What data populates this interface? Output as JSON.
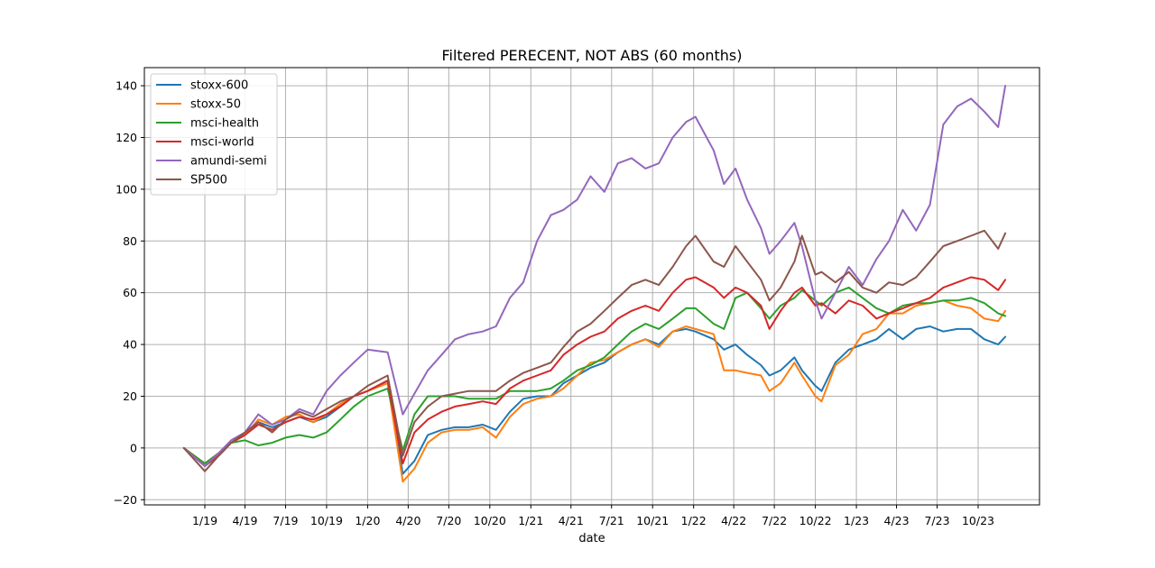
{
  "chart_data": {
    "type": "line",
    "title": "Filtered PERECENT, NOT ABS (60 months)",
    "xlabel": "date",
    "ylabel": "",
    "grid": true,
    "legend_position": "top-left",
    "x_tick_labels": [
      "1/19",
      "4/19",
      "7/19",
      "10/19",
      "1/20",
      "4/20",
      "7/20",
      "10/20",
      "1/21",
      "4/21",
      "7/21",
      "10/21",
      "1/22",
      "4/22",
      "7/22",
      "10/22",
      "1/23",
      "4/23",
      "7/23",
      "10/23"
    ],
    "y_ticks": [
      -20,
      0,
      20,
      40,
      60,
      80,
      100,
      120,
      140
    ],
    "ylim": [
      -22,
      147
    ],
    "x_dates": [
      "2018-11-15",
      "2019-01-01",
      "2019-02-01",
      "2019-03-01",
      "2019-04-01",
      "2019-05-01",
      "2019-06-01",
      "2019-07-01",
      "2019-08-01",
      "2019-09-01",
      "2019-10-01",
      "2019-11-01",
      "2019-12-01",
      "2020-01-01",
      "2020-02-15",
      "2020-03-20",
      "2020-04-15",
      "2020-05-15",
      "2020-06-15",
      "2020-07-15",
      "2020-08-15",
      "2020-09-15",
      "2020-10-15",
      "2020-11-15",
      "2020-12-15",
      "2021-01-15",
      "2021-02-15",
      "2021-03-15",
      "2021-04-15",
      "2021-05-15",
      "2021-06-15",
      "2021-07-15",
      "2021-08-15",
      "2021-09-15",
      "2021-10-15",
      "2021-11-15",
      "2021-12-15",
      "2022-01-05",
      "2022-02-15",
      "2022-03-10",
      "2022-04-05",
      "2022-05-01",
      "2022-06-01",
      "2022-06-20",
      "2022-07-15",
      "2022-08-15",
      "2022-09-01",
      "2022-10-01",
      "2022-10-15",
      "2022-11-15",
      "2022-12-15",
      "2023-01-15",
      "2023-02-15",
      "2023-03-15",
      "2023-04-15",
      "2023-05-15",
      "2023-06-15",
      "2023-07-15",
      "2023-08-15",
      "2023-09-15",
      "2023-10-15",
      "2023-11-15",
      "2023-12-01"
    ],
    "series": [
      {
        "name": "stoxx-600",
        "color": "#1f77b4",
        "values": [
          0,
          -7,
          -3,
          2,
          5,
          10,
          8,
          10,
          12,
          10,
          12,
          16,
          20,
          22,
          26,
          -10,
          -5,
          5,
          7,
          8,
          8,
          9,
          7,
          14,
          19,
          20,
          20,
          25,
          28,
          31,
          33,
          37,
          40,
          42,
          40,
          45,
          46,
          45,
          42,
          38,
          40,
          36,
          32,
          28,
          30,
          35,
          30,
          24,
          22,
          33,
          38,
          40,
          42,
          46,
          42,
          46,
          47,
          45,
          46,
          46,
          42,
          40,
          43
        ]
      },
      {
        "name": "stoxx-50",
        "color": "#ff7f0e",
        "values": [
          0,
          -6,
          -2,
          2,
          5,
          11,
          9,
          12,
          13,
          10,
          13,
          17,
          20,
          22,
          25,
          -13,
          -8,
          2,
          6,
          7,
          7,
          8,
          4,
          12,
          17,
          19,
          20,
          23,
          28,
          33,
          34,
          37,
          40,
          42,
          39,
          45,
          47,
          46,
          44,
          30,
          30,
          29,
          28,
          22,
          25,
          33,
          28,
          20,
          18,
          32,
          36,
          44,
          46,
          52,
          52,
          55,
          56,
          57,
          55,
          54,
          50,
          49,
          53
        ]
      },
      {
        "name": "msci-health",
        "color": "#2ca02c",
        "values": [
          0,
          -6,
          -2,
          2,
          3,
          1,
          2,
          4,
          5,
          4,
          6,
          11,
          16,
          20,
          23,
          -1,
          13,
          20,
          20,
          20,
          19,
          19,
          19,
          22,
          22,
          22,
          23,
          26,
          30,
          32,
          35,
          40,
          45,
          48,
          46,
          50,
          54,
          54,
          48,
          46,
          58,
          60,
          54,
          50,
          55,
          58,
          61,
          57,
          55,
          60,
          62,
          58,
          54,
          52,
          55,
          56,
          56,
          57,
          57,
          58,
          56,
          52,
          51
        ]
      },
      {
        "name": "msci-world",
        "color": "#d62728",
        "values": [
          0,
          -7,
          -3,
          2,
          5,
          9,
          7,
          10,
          12,
          11,
          13,
          16,
          20,
          22,
          26,
          -6,
          6,
          11,
          14,
          16,
          17,
          18,
          17,
          23,
          26,
          28,
          30,
          36,
          40,
          43,
          45,
          50,
          53,
          55,
          53,
          60,
          65,
          66,
          62,
          58,
          62,
          60,
          55,
          46,
          53,
          60,
          62,
          55,
          56,
          52,
          57,
          55,
          50,
          52,
          54,
          56,
          58,
          62,
          64,
          66,
          65,
          61,
          65
        ]
      },
      {
        "name": "amundi-semi",
        "color": "#9467bd",
        "values": [
          0,
          -7,
          -2,
          3,
          6,
          13,
          9,
          11,
          15,
          13,
          22,
          28,
          33,
          38,
          37,
          13,
          21,
          30,
          36,
          42,
          44,
          45,
          47,
          58,
          64,
          80,
          90,
          92,
          96,
          105,
          99,
          110,
          112,
          108,
          110,
          120,
          126,
          128,
          115,
          102,
          108,
          96,
          85,
          75,
          80,
          87,
          78,
          57,
          50,
          60,
          70,
          63,
          73,
          80,
          92,
          84,
          94,
          125,
          132,
          135,
          130,
          124,
          140
        ]
      },
      {
        "name": "SP500",
        "color": "#8c564b",
        "values": [
          0,
          -9,
          -3,
          2,
          6,
          10,
          6,
          11,
          14,
          12,
          15,
          18,
          20,
          24,
          28,
          -3,
          10,
          16,
          20,
          21,
          22,
          22,
          22,
          26,
          29,
          31,
          33,
          39,
          45,
          48,
          53,
          58,
          63,
          65,
          63,
          70,
          78,
          82,
          72,
          70,
          78,
          72,
          65,
          57,
          62,
          72,
          82,
          67,
          68,
          64,
          68,
          62,
          60,
          64,
          63,
          66,
          72,
          78,
          80,
          82,
          84,
          77,
          83
        ]
      }
    ]
  }
}
